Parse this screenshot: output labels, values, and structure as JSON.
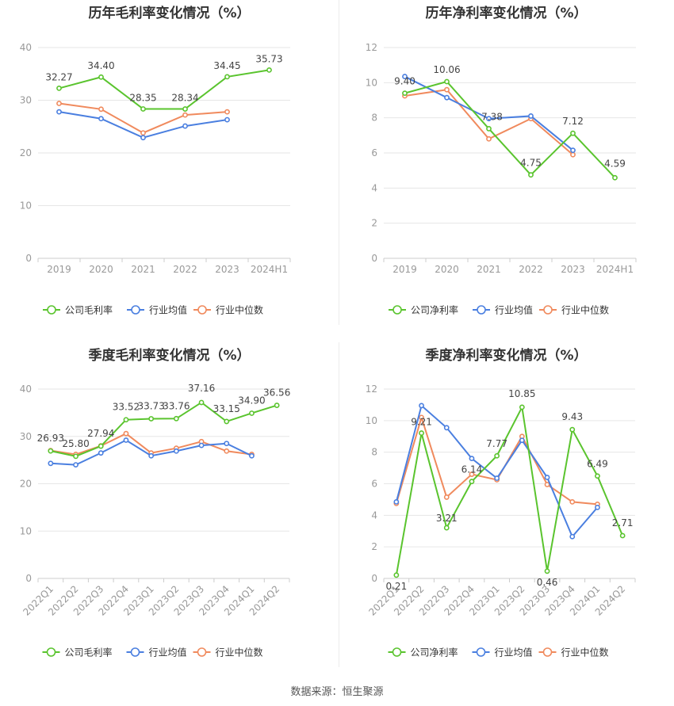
{
  "source": "数据来源：恒生聚源",
  "chart_data": [
    {
      "type": "line",
      "title": "历年毛利率变化情况（%）",
      "categories": [
        "2019",
        "2020",
        "2021",
        "2022",
        "2023",
        "2024H1"
      ],
      "ylim": [
        0,
        40
      ],
      "yticks": [
        0,
        10,
        20,
        30,
        40
      ],
      "grid": true,
      "legend_position": "bottom",
      "series": [
        {
          "name": "公司毛利率",
          "color": "#5ac42e",
          "values": [
            32.27,
            34.4,
            28.35,
            28.34,
            34.45,
            35.73
          ],
          "labels": [
            "32.27",
            "34.40",
            "28.35",
            "28.34",
            "34.45",
            "35.73"
          ]
        },
        {
          "name": "行业均值",
          "color": "#4a7fe0",
          "values": [
            27.8,
            26.5,
            22.9,
            25.1,
            26.3,
            null
          ]
        },
        {
          "name": "行业中位数",
          "color": "#f08a5d",
          "values": [
            29.4,
            28.3,
            23.8,
            27.2,
            27.8,
            null
          ]
        }
      ]
    },
    {
      "type": "line",
      "title": "历年净利率变化情况（%）",
      "categories": [
        "2019",
        "2020",
        "2021",
        "2022",
        "2023",
        "2024H1"
      ],
      "ylim": [
        0,
        12
      ],
      "yticks": [
        0,
        2,
        4,
        6,
        8,
        10,
        12
      ],
      "grid": true,
      "legend_position": "bottom",
      "series": [
        {
          "name": "公司净利率",
          "color": "#5ac42e",
          "values": [
            9.4,
            10.06,
            7.38,
            4.75,
            7.12,
            4.59
          ],
          "labels": [
            "9.40",
            "10.06",
            "7.38",
            "4.75",
            "7.12",
            "4.59"
          ]
        },
        {
          "name": "行业均值",
          "color": "#4a7fe0",
          "values": [
            10.35,
            9.15,
            7.95,
            8.1,
            6.15,
            null
          ]
        },
        {
          "name": "行业中位数",
          "color": "#f08a5d",
          "values": [
            9.25,
            9.6,
            6.8,
            7.95,
            5.9,
            null
          ]
        }
      ]
    },
    {
      "type": "line",
      "title": "季度毛利率变化情况（%）",
      "categories": [
        "2022Q1",
        "2022Q2",
        "2022Q3",
        "2022Q4",
        "2023Q1",
        "2023Q2",
        "2023Q3",
        "2023Q4",
        "2024Q1",
        "2024Q2"
      ],
      "ylim": [
        0,
        40
      ],
      "yticks": [
        0,
        10,
        20,
        30,
        40
      ],
      "grid": true,
      "legend_position": "bottom",
      "series": [
        {
          "name": "公司毛利率",
          "color": "#5ac42e",
          "values": [
            26.93,
            25.8,
            27.94,
            33.52,
            33.73,
            33.76,
            37.16,
            33.15,
            34.9,
            36.56
          ],
          "labels": [
            "26.93",
            "25.80",
            "27.94",
            "33.52",
            "33.73",
            "33.76",
            "37.16",
            "33.15",
            "34.90",
            "36.56"
          ]
        },
        {
          "name": "行业均值",
          "color": "#4a7fe0",
          "values": [
            24.3,
            24.0,
            26.5,
            29.2,
            25.9,
            26.9,
            28.1,
            28.5,
            25.9,
            null
          ]
        },
        {
          "name": "行业中位数",
          "color": "#f08a5d",
          "values": [
            27.0,
            26.2,
            28.0,
            30.6,
            26.5,
            27.5,
            28.9,
            26.9,
            26.2,
            null
          ]
        }
      ]
    },
    {
      "type": "line",
      "title": "季度净利率变化情况（%）",
      "categories": [
        "2022Q1",
        "2022Q2",
        "2022Q3",
        "2022Q4",
        "2023Q1",
        "2023Q2",
        "2023Q3",
        "2023Q4",
        "2024Q1",
        "2024Q2"
      ],
      "ylim": [
        0,
        12
      ],
      "yticks": [
        0,
        2,
        4,
        6,
        8,
        10,
        12
      ],
      "grid": true,
      "legend_position": "bottom",
      "series": [
        {
          "name": "公司净利率",
          "color": "#5ac42e",
          "values": [
            0.21,
            9.21,
            3.21,
            6.14,
            7.77,
            10.85,
            0.46,
            9.43,
            6.49,
            2.71
          ],
          "labels": [
            "0.21",
            "9.21",
            "3.21",
            "6.14",
            "7.77",
            "10.85",
            "0.46",
            "9.43",
            "6.49",
            "2.71"
          ]
        },
        {
          "name": "行业均值",
          "color": "#4a7fe0",
          "values": [
            4.85,
            10.95,
            9.55,
            7.6,
            6.35,
            8.75,
            6.4,
            2.65,
            4.5,
            null
          ]
        },
        {
          "name": "行业中位数",
          "color": "#f08a5d",
          "values": [
            4.75,
            10.2,
            5.15,
            6.6,
            6.25,
            9.0,
            5.95,
            4.85,
            4.7,
            null
          ]
        }
      ]
    }
  ]
}
